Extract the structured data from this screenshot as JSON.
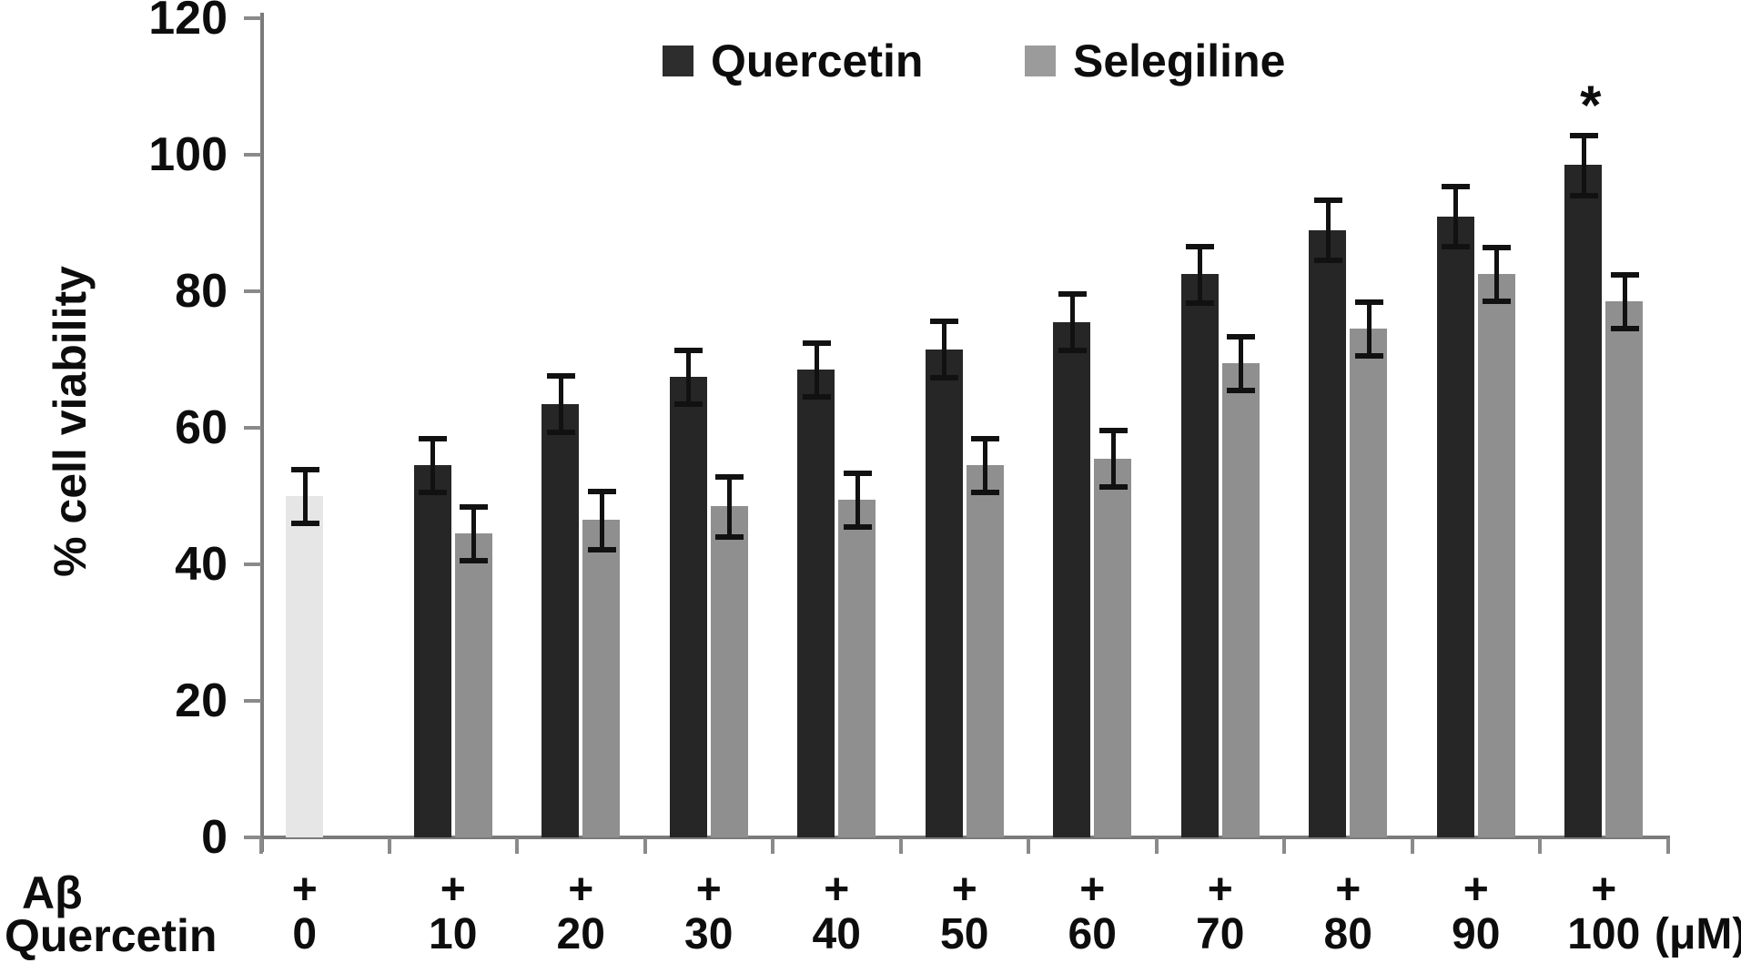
{
  "chart_data": {
    "type": "bar",
    "title": "",
    "ylabel": "% cell viability",
    "ylim": [
      0,
      120
    ],
    "yticks": [
      0,
      20,
      40,
      60,
      80,
      100,
      120
    ],
    "grid": false,
    "legend": {
      "position": "top",
      "items": [
        {
          "label": "Quercetin",
          "color": "#2d2d2d"
        },
        {
          "label": "Selegiline",
          "color": "#9b9b9b"
        }
      ]
    },
    "categories": [
      "0",
      "10",
      "20",
      "30",
      "40",
      "50",
      "60",
      "70",
      "80",
      "90",
      "100"
    ],
    "x_axis_rows": [
      {
        "label": "Aβ",
        "values": [
          "+",
          "+",
          "+",
          "+",
          "+",
          "+",
          "+",
          "+",
          "+",
          "+",
          "+"
        ]
      },
      {
        "label": "Quercetin",
        "values": [
          "0",
          "10",
          "20",
          "30",
          "40",
          "50",
          "60",
          "70",
          "80",
          "90",
          "100"
        ],
        "unit": "(μM)"
      }
    ],
    "control": {
      "category": "0",
      "value": 50,
      "err": 4,
      "color": "#e6e6e6"
    },
    "series": [
      {
        "name": "Quercetin",
        "color": "#262626",
        "values": [
          null,
          54.5,
          63.5,
          67.5,
          68.5,
          71.5,
          75.5,
          82.5,
          89,
          91,
          98.5
        ],
        "errors": [
          null,
          4,
          4.2,
          4,
          4,
          4.2,
          4.2,
          4.2,
          4.5,
          4.5,
          4.5
        ]
      },
      {
        "name": "Selegiline",
        "color": "#8f8f8f",
        "values": [
          null,
          44.5,
          46.5,
          48.5,
          49.5,
          54.5,
          55.5,
          69.5,
          74.5,
          82.5,
          78.5
        ],
        "errors": [
          null,
          4,
          4.3,
          4.5,
          4,
          4,
          4.2,
          4,
          4,
          4,
          4
        ]
      }
    ],
    "annotations": [
      {
        "text": "*",
        "category": "100",
        "series": "Quercetin"
      }
    ]
  }
}
